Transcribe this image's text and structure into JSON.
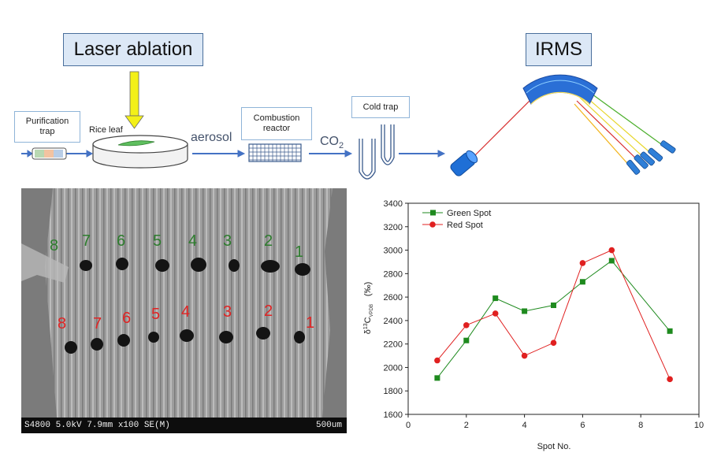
{
  "diagram": {
    "laser_label": "Laser ablation",
    "irms_label": "IRMS",
    "purification_label": "Purification trap",
    "rice_leaf_label": "Rice leaf",
    "aerosol_label": "aerosol",
    "combustion_label": "Combustion reactor",
    "co2_main": "CO",
    "co2_sub": "2",
    "cold_trap_label": "Cold trap"
  },
  "sem": {
    "info_left": "S4800 5.0kV 7.9mm x100 SE(M)",
    "scale_label": "500um",
    "green_spots": [
      "8",
      "7",
      "6",
      "5",
      "4",
      "3",
      "2",
      "1"
    ],
    "red_spots": [
      "8",
      "7",
      "6",
      "5",
      "4",
      "3",
      "2",
      "1"
    ]
  },
  "chart_data": {
    "type": "line",
    "title": "",
    "xlabel": "Spot No.",
    "ylabel_prefix": "δ",
    "ylabel_sup": "13",
    "ylabel_main": "C",
    "ylabel_sub": "VPDB",
    "ylabel_unit": "(‰)",
    "xlim": [
      0,
      10
    ],
    "ylim": [
      1600,
      3400
    ],
    "x_ticks": [
      0,
      2,
      4,
      6,
      8,
      10
    ],
    "y_ticks": [
      1600,
      1800,
      2000,
      2200,
      2400,
      2600,
      2800,
      3000,
      3200,
      3400
    ],
    "legend_position": "top-left",
    "series": [
      {
        "name": "Green Spot",
        "color": "#1e8a1e",
        "marker": "square",
        "x": [
          1,
          2,
          3,
          4,
          5,
          6,
          7,
          9
        ],
        "values": [
          1910,
          2230,
          2590,
          2480,
          2530,
          2730,
          2910,
          2310
        ]
      },
      {
        "name": "Red Spot",
        "color": "#e02020",
        "marker": "circle",
        "x": [
          1,
          2,
          3,
          4,
          5,
          6,
          7,
          9
        ],
        "values": [
          2060,
          2360,
          2460,
          2100,
          2210,
          2890,
          3000,
          1900
        ]
      }
    ]
  }
}
